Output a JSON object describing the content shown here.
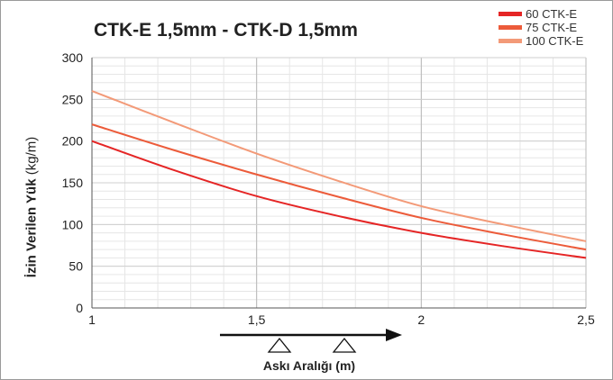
{
  "chart_data": {
    "type": "line",
    "title": "CTK-E 1,5mm - CTK-D 1,5mm",
    "ylabel_bold": "İzin Verilen Yük",
    "ylabel_unit": "(kg/m)",
    "xlabel": "Askı Aralığı (m)",
    "xlim": [
      1,
      2.5
    ],
    "ylim": [
      0,
      300
    ],
    "xticks": [
      1,
      1.5,
      2,
      2.5
    ],
    "xtick_labels": [
      "1",
      "1,5",
      "2",
      "2,5"
    ],
    "yticks": [
      0,
      50,
      100,
      150,
      200,
      250,
      300
    ],
    "ytick_labels": [
      "0",
      "50",
      "100",
      "150",
      "200",
      "250",
      "300"
    ],
    "grid": true,
    "legend_position": "top-right",
    "series": [
      {
        "name": "60 CTK-E",
        "color": "#e52525",
        "x": [
          1,
          1.25,
          1.5,
          1.75,
          2,
          2.25,
          2.5
        ],
        "y": [
          200,
          165,
          134,
          110,
          90,
          74,
          60
        ]
      },
      {
        "name": "75 CTK-E",
        "color": "#ec5b3a",
        "x": [
          1,
          1.25,
          1.5,
          1.75,
          2,
          2.25,
          2.5
        ],
        "y": [
          220,
          189,
          160,
          133,
          108,
          88,
          70
        ]
      },
      {
        "name": "100 CTK-E",
        "color": "#f39a78",
        "x": [
          1,
          1.25,
          1.5,
          1.75,
          2,
          2.25,
          2.5
        ],
        "y": [
          260,
          222,
          185,
          152,
          122,
          100,
          80
        ]
      }
    ]
  }
}
